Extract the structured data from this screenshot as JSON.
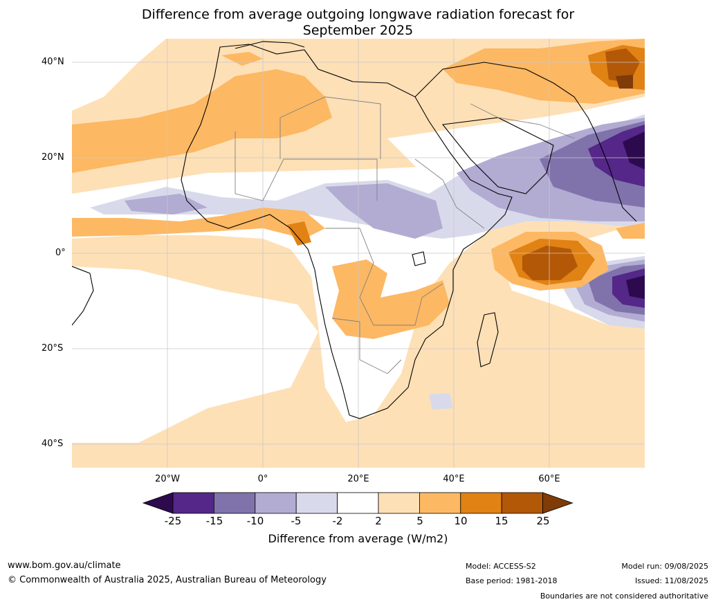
{
  "title": {
    "line1": "Difference from average outgoing longwave radiation forecast for",
    "line2": "September 2025"
  },
  "map": {
    "lat_labels": [
      "40°N",
      "20°N",
      "0°",
      "20°S",
      "40°S"
    ],
    "lon_labels": [
      "20°W",
      "0°",
      "20°E",
      "40°E",
      "60°E"
    ]
  },
  "colorbar": {
    "label": "Difference from average (W/m2)",
    "ticks": [
      "-25",
      "-15",
      "-10",
      "-5",
      "-2",
      "2",
      "5",
      "10",
      "15",
      "25"
    ],
    "colors": [
      "#2d0a4e",
      "#542788",
      "#8073ac",
      "#b2abd2",
      "#d8daeb",
      "#ffffff",
      "#fee0b6",
      "#fdb863",
      "#e08214",
      "#b35806",
      "#7f3b08"
    ]
  },
  "footer": {
    "website": "www.bom.gov.au/climate",
    "copyright": "© Commonwealth of Australia 2025, Australian Bureau of Meteorology",
    "model": "Model: ACCESS-S2",
    "base_period": "Base period: 1981-2018",
    "model_run": "Model run: 09/08/2025",
    "issued": "Issued: 11/08/2025",
    "disclaimer": "Boundaries are not considered authoritative"
  }
}
